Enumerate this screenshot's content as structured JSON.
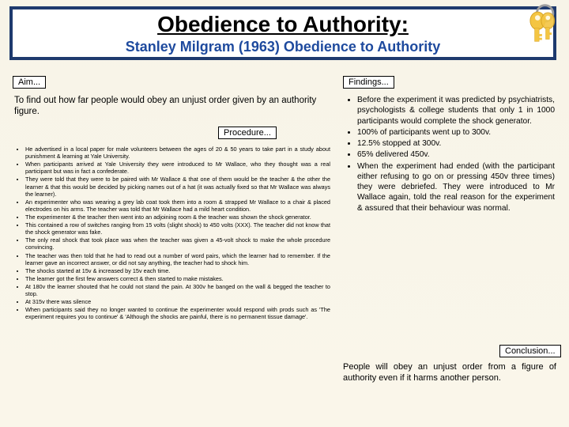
{
  "header": {
    "title": "Obedience to Authority:",
    "subtitle": "Stanley Milgram (1963) Obedience to Authority"
  },
  "labels": {
    "aim": "Aim...",
    "procedure": "Procedure...",
    "findings": "Findings...",
    "conclusion": "Conclusion..."
  },
  "aim_text": "To find out how far people would obey an unjust order given by an authority figure.",
  "procedure": [
    "He advertised in a local paper for male volunteers between the ages of 20 & 50 years to take part in a study about punishment & learning at Yale University.",
    "When participants arrived at Yale University they were introduced to Mr Wallace, who they thought was a real participant but was in fact a confederate.",
    "They were told that they were to be paired with Mr Wallace & that one of them would be the teacher & the other the learner & that this would be decided by picking names out of a hat (it was actually fixed so that Mr Wallace was always the learner).",
    "An experimenter who was wearing a grey lab coat took them into a room & strapped Mr Wallace to a chair & placed electrodes on his arms. The teacher was told that Mr Wallace had a mild heart condition.",
    "The experimenter & the teacher then went into an adjoining room & the teacher was shown the shock generator.",
    "This contained a row of switches ranging from 15 volts (slight shock) to 450 volts (XXX). The teacher did not know that the shock generator was fake.",
    "The only real shock that took place was when the teacher was given a 45-volt shock to make the whole procedure convincing.",
    "The teacher was then told that he had to read out a number of word pairs, which the learner had to remember. If the learner gave an incorrect answer, or did not say anything, the teacher had to shock him.",
    "The shocks started at 15v & increased by 15v each time.",
    "The learner got the first few answers correct & then started to make mistakes.",
    "At 180v the learner shouted that he could not stand the pain. At 300v he banged on the wall & begged the teacher to stop.",
    "At 315v there was silence",
    "When participants said they no longer wanted to continue the experimenter would respond with prods such as 'The experiment requires you to continue' & 'Although the shocks are painful, there is no permanent tissue damage'."
  ],
  "findings": [
    "Before the experiment it was predicted by psychiatrists, psychologists & college students that only 1 in 1000 participants would complete the shock generator.",
    "100% of participants went up to 300v.",
    "12.5% stopped at 300v.",
    "65% delivered 450v.",
    "When the experiment had ended (with the participant either refusing to go on or pressing 450v three times) they were debriefed. They were introduced to Mr Wallace again, told the real reason for the experiment & assured that their behaviour was normal."
  ],
  "conclusion": "People will obey an unjust order from a figure of authority even if it harms another person.",
  "colors": {
    "border": "#1e3a6e",
    "subtitle": "#1e4a9e",
    "bg_top": "#f7f4e8",
    "key_gold": "#f4c542",
    "key_ring": "#9e9e9e"
  }
}
